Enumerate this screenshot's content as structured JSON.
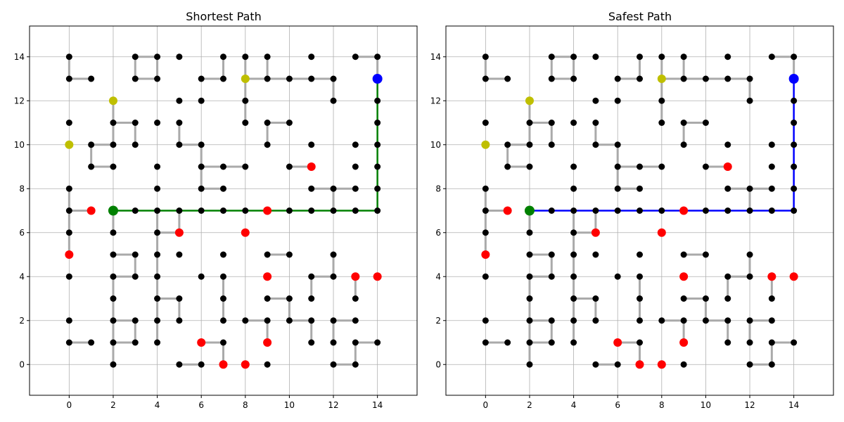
{
  "colors": {
    "node": "#000000",
    "danger": "#ff0000",
    "bonus": "#bfbf00",
    "start": "#008000",
    "goal": "#0000ff",
    "edge": "#aaaaaa",
    "grid": "#b0b0b0",
    "path_shortest": "#008000",
    "path_safest": "#0000ff"
  },
  "chart_data": [
    {
      "type": "scatter",
      "title": "Shortest Path",
      "xlabel": "",
      "ylabel": "",
      "xlim": [
        -1.8,
        15.8
      ],
      "ylim": [
        -1.4,
        15.4
      ],
      "xticks": [
        0,
        2,
        4,
        6,
        8,
        10,
        12,
        14
      ],
      "yticks": [
        0,
        2,
        4,
        6,
        8,
        10,
        12,
        14
      ],
      "grid": true,
      "path_color_key": "path_shortest",
      "path": [
        [
          2,
          7
        ],
        [
          3,
          7
        ],
        [
          4,
          7
        ],
        [
          5,
          7
        ],
        [
          6,
          7
        ],
        [
          7,
          7
        ],
        [
          8,
          7
        ],
        [
          9,
          7
        ],
        [
          10,
          7
        ],
        [
          11,
          7
        ],
        [
          12,
          7
        ],
        [
          13,
          7
        ],
        [
          14,
          7
        ],
        [
          14,
          8
        ],
        [
          14,
          9
        ],
        [
          14,
          10
        ],
        [
          14,
          11
        ],
        [
          14,
          12
        ],
        [
          14,
          13
        ]
      ]
    },
    {
      "type": "scatter",
      "title": "Safest Path",
      "xlabel": "",
      "ylabel": "",
      "xlim": [
        -1.8,
        15.8
      ],
      "ylim": [
        -1.4,
        15.4
      ],
      "xticks": [
        0,
        2,
        4,
        6,
        8,
        10,
        12,
        14
      ],
      "yticks": [
        0,
        2,
        4,
        6,
        8,
        10,
        12,
        14
      ],
      "grid": true,
      "path_color_key": "path_safest",
      "path": [
        [
          2,
          7
        ],
        [
          3,
          7
        ],
        [
          4,
          7
        ],
        [
          5,
          7
        ],
        [
          6,
          7
        ],
        [
          7,
          7
        ],
        [
          8,
          7
        ],
        [
          9,
          7
        ],
        [
          10,
          7
        ],
        [
          11,
          7
        ],
        [
          12,
          7
        ],
        [
          13,
          7
        ],
        [
          14,
          7
        ],
        [
          14,
          8
        ],
        [
          14,
          9
        ],
        [
          14,
          10
        ],
        [
          14,
          11
        ],
        [
          14,
          12
        ],
        [
          14,
          13
        ]
      ]
    }
  ],
  "graph": {
    "start": [
      2,
      7
    ],
    "goal": [
      14,
      13
    ],
    "bonus_nodes": [
      [
        0,
        10
      ],
      [
        2,
        12
      ],
      [
        8,
        13
      ]
    ],
    "danger_nodes": [
      [
        1,
        7
      ],
      [
        0,
        5
      ],
      [
        5,
        6
      ],
      [
        8,
        6
      ],
      [
        9,
        7
      ],
      [
        11,
        9
      ],
      [
        9,
        4
      ],
      [
        13,
        4
      ],
      [
        14,
        4
      ],
      [
        6,
        1
      ],
      [
        9,
        1
      ],
      [
        7,
        0
      ],
      [
        8,
        0
      ]
    ],
    "nodes": [
      [
        0,
        14
      ],
      [
        3,
        14
      ],
      [
        4,
        14
      ],
      [
        5,
        14
      ],
      [
        7,
        14
      ],
      [
        8,
        14
      ],
      [
        9,
        14
      ],
      [
        11,
        14
      ],
      [
        13,
        14
      ],
      [
        14,
        14
      ],
      [
        0,
        13
      ],
      [
        1,
        13
      ],
      [
        3,
        13
      ],
      [
        4,
        13
      ],
      [
        6,
        13
      ],
      [
        7,
        13
      ],
      [
        9,
        13
      ],
      [
        10,
        13
      ],
      [
        11,
        13
      ],
      [
        12,
        13
      ],
      [
        5,
        12
      ],
      [
        6,
        12
      ],
      [
        8,
        12
      ],
      [
        12,
        12
      ],
      [
        14,
        12
      ],
      [
        0,
        11
      ],
      [
        2,
        11
      ],
      [
        3,
        11
      ],
      [
        4,
        11
      ],
      [
        5,
        11
      ],
      [
        8,
        11
      ],
      [
        9,
        11
      ],
      [
        10,
        11
      ],
      [
        14,
        11
      ],
      [
        1,
        10
      ],
      [
        2,
        10
      ],
      [
        3,
        10
      ],
      [
        5,
        10
      ],
      [
        6,
        10
      ],
      [
        9,
        10
      ],
      [
        11,
        10
      ],
      [
        13,
        10
      ],
      [
        14,
        10
      ],
      [
        1,
        9
      ],
      [
        2,
        9
      ],
      [
        4,
        9
      ],
      [
        6,
        9
      ],
      [
        7,
        9
      ],
      [
        8,
        9
      ],
      [
        10,
        9
      ],
      [
        13,
        9
      ],
      [
        14,
        9
      ],
      [
        0,
        8
      ],
      [
        4,
        8
      ],
      [
        6,
        8
      ],
      [
        7,
        8
      ],
      [
        11,
        8
      ],
      [
        12,
        8
      ],
      [
        13,
        8
      ],
      [
        14,
        8
      ],
      [
        0,
        7
      ],
      [
        3,
        7
      ],
      [
        4,
        7
      ],
      [
        5,
        7
      ],
      [
        6,
        7
      ],
      [
        7,
        7
      ],
      [
        8,
        7
      ],
      [
        10,
        7
      ],
      [
        11,
        7
      ],
      [
        12,
        7
      ],
      [
        13,
        7
      ],
      [
        14,
        7
      ],
      [
        0,
        6
      ],
      [
        2,
        6
      ],
      [
        4,
        6
      ],
      [
        2,
        5
      ],
      [
        3,
        5
      ],
      [
        4,
        5
      ],
      [
        5,
        5
      ],
      [
        7,
        5
      ],
      [
        9,
        5
      ],
      [
        10,
        5
      ],
      [
        12,
        5
      ],
      [
        0,
        4
      ],
      [
        2,
        4
      ],
      [
        3,
        4
      ],
      [
        4,
        4
      ],
      [
        6,
        4
      ],
      [
        7,
        4
      ],
      [
        11,
        4
      ],
      [
        12,
        4
      ],
      [
        2,
        3
      ],
      [
        4,
        3
      ],
      [
        5,
        3
      ],
      [
        7,
        3
      ],
      [
        9,
        3
      ],
      [
        10,
        3
      ],
      [
        11,
        3
      ],
      [
        13,
        3
      ],
      [
        0,
        2
      ],
      [
        2,
        2
      ],
      [
        3,
        2
      ],
      [
        4,
        2
      ],
      [
        5,
        2
      ],
      [
        7,
        2
      ],
      [
        8,
        2
      ],
      [
        9,
        2
      ],
      [
        10,
        2
      ],
      [
        11,
        2
      ],
      [
        12,
        2
      ],
      [
        13,
        2
      ],
      [
        0,
        1
      ],
      [
        1,
        1
      ],
      [
        2,
        1
      ],
      [
        3,
        1
      ],
      [
        4,
        1
      ],
      [
        7,
        1
      ],
      [
        11,
        1
      ],
      [
        12,
        1
      ],
      [
        13,
        1
      ],
      [
        14,
        1
      ],
      [
        2,
        0
      ],
      [
        5,
        0
      ],
      [
        6,
        0
      ],
      [
        9,
        0
      ],
      [
        12,
        0
      ],
      [
        13,
        0
      ]
    ],
    "edges": [
      [
        [
          0,
          14
        ],
        [
          0,
          13
        ]
      ],
      [
        [
          0,
          13
        ],
        [
          1,
          13
        ]
      ],
      [
        [
          3,
          14
        ],
        [
          4,
          14
        ]
      ],
      [
        [
          3,
          14
        ],
        [
          3,
          13
        ]
      ],
      [
        [
          3,
          13
        ],
        [
          4,
          13
        ]
      ],
      [
        [
          4,
          14
        ],
        [
          4,
          13
        ]
      ],
      [
        [
          7,
          14
        ],
        [
          7,
          13
        ]
      ],
      [
        [
          6,
          13
        ],
        [
          7,
          13
        ]
      ],
      [
        [
          8,
          14
        ],
        [
          8,
          13
        ]
      ],
      [
        [
          8,
          13
        ],
        [
          9,
          13
        ]
      ],
      [
        [
          9,
          14
        ],
        [
          9,
          13
        ]
      ],
      [
        [
          9,
          13
        ],
        [
          10,
          13
        ]
      ],
      [
        [
          10,
          13
        ],
        [
          11,
          13
        ]
      ],
      [
        [
          11,
          13
        ],
        [
          12,
          13
        ]
      ],
      [
        [
          12,
          13
        ],
        [
          12,
          12
        ]
      ],
      [
        [
          13,
          14
        ],
        [
          14,
          14
        ]
      ],
      [
        [
          14,
          14
        ],
        [
          14,
          13
        ]
      ],
      [
        [
          8,
          13
        ],
        [
          8,
          12
        ]
      ],
      [
        [
          8,
          12
        ],
        [
          8,
          11
        ]
      ],
      [
        [
          2,
          12
        ],
        [
          2,
          11
        ]
      ],
      [
        [
          2,
          11
        ],
        [
          3,
          11
        ]
      ],
      [
        [
          3,
          11
        ],
        [
          3,
          10
        ]
      ],
      [
        [
          2,
          11
        ],
        [
          2,
          10
        ]
      ],
      [
        [
          1,
          10
        ],
        [
          2,
          10
        ]
      ],
      [
        [
          1,
          10
        ],
        [
          1,
          9
        ]
      ],
      [
        [
          1,
          9
        ],
        [
          2,
          9
        ]
      ],
      [
        [
          5,
          11
        ],
        [
          5,
          10
        ]
      ],
      [
        [
          5,
          10
        ],
        [
          6,
          10
        ]
      ],
      [
        [
          6,
          10
        ],
        [
          6,
          9
        ]
      ],
      [
        [
          6,
          9
        ],
        [
          7,
          9
        ]
      ],
      [
        [
          7,
          9
        ],
        [
          8,
          9
        ]
      ],
      [
        [
          6,
          9
        ],
        [
          6,
          8
        ]
      ],
      [
        [
          6,
          8
        ],
        [
          7,
          8
        ]
      ],
      [
        [
          9,
          11
        ],
        [
          10,
          11
        ]
      ],
      [
        [
          9,
          11
        ],
        [
          9,
          10
        ]
      ],
      [
        [
          10,
          9
        ],
        [
          11,
          9
        ]
      ],
      [
        [
          11,
          8
        ],
        [
          12,
          8
        ]
      ],
      [
        [
          12,
          8
        ],
        [
          13,
          8
        ]
      ],
      [
        [
          12,
          8
        ],
        [
          12,
          7
        ]
      ],
      [
        [
          0,
          8
        ],
        [
          0,
          7
        ]
      ],
      [
        [
          0,
          7
        ],
        [
          1,
          7
        ]
      ],
      [
        [
          2,
          7
        ],
        [
          2,
          6
        ]
      ],
      [
        [
          4,
          7
        ],
        [
          4,
          6
        ]
      ],
      [
        [
          4,
          6
        ],
        [
          5,
          6
        ]
      ],
      [
        [
          5,
          7
        ],
        [
          5,
          6
        ]
      ],
      [
        [
          0,
          7
        ],
        [
          0,
          6
        ]
      ],
      [
        [
          0,
          6
        ],
        [
          0,
          5
        ]
      ],
      [
        [
          2,
          5
        ],
        [
          3,
          5
        ]
      ],
      [
        [
          3,
          5
        ],
        [
          3,
          4
        ]
      ],
      [
        [
          2,
          4
        ],
        [
          3,
          4
        ]
      ],
      [
        [
          4,
          6
        ],
        [
          4,
          5
        ]
      ],
      [
        [
          4,
          5
        ],
        [
          4,
          4
        ]
      ],
      [
        [
          9,
          5
        ],
        [
          10,
          5
        ]
      ],
      [
        [
          12,
          5
        ],
        [
          12,
          4
        ]
      ],
      [
        [
          11,
          4
        ],
        [
          12,
          4
        ]
      ],
      [
        [
          11,
          4
        ],
        [
          11,
          3
        ]
      ],
      [
        [
          13,
          4
        ],
        [
          13,
          3
        ]
      ],
      [
        [
          4,
          4
        ],
        [
          4,
          3
        ]
      ],
      [
        [
          4,
          3
        ],
        [
          5,
          3
        ]
      ],
      [
        [
          5,
          3
        ],
        [
          5,
          2
        ]
      ],
      [
        [
          4,
          3
        ],
        [
          4,
          2
        ]
      ],
      [
        [
          7,
          4
        ],
        [
          7,
          3
        ]
      ],
      [
        [
          7,
          3
        ],
        [
          7,
          2
        ]
      ],
      [
        [
          2,
          4
        ],
        [
          2,
          3
        ]
      ],
      [
        [
          2,
          3
        ],
        [
          2,
          2
        ]
      ],
      [
        [
          2,
          2
        ],
        [
          3,
          2
        ]
      ],
      [
        [
          3,
          2
        ],
        [
          3,
          1
        ]
      ],
      [
        [
          2,
          2
        ],
        [
          2,
          1
        ]
      ],
      [
        [
          2,
          1
        ],
        [
          3,
          1
        ]
      ],
      [
        [
          2,
          1
        ],
        [
          2,
          0
        ]
      ],
      [
        [
          4,
          2
        ],
        [
          4,
          1
        ]
      ],
      [
        [
          0,
          1
        ],
        [
          1,
          1
        ]
      ],
      [
        [
          6,
          1
        ],
        [
          7,
          1
        ]
      ],
      [
        [
          7,
          1
        ],
        [
          7,
          0
        ]
      ],
      [
        [
          9,
          3
        ],
        [
          10,
          3
        ]
      ],
      [
        [
          10,
          3
        ],
        [
          10,
          2
        ]
      ],
      [
        [
          10,
          2
        ],
        [
          11,
          2
        ]
      ],
      [
        [
          11,
          2
        ],
        [
          11,
          1
        ]
      ],
      [
        [
          12,
          2
        ],
        [
          13,
          2
        ]
      ],
      [
        [
          12,
          2
        ],
        [
          12,
          1
        ]
      ],
      [
        [
          13,
          1
        ],
        [
          14,
          1
        ]
      ],
      [
        [
          13,
          1
        ],
        [
          13,
          0
        ]
      ],
      [
        [
          12,
          0
        ],
        [
          13,
          0
        ]
      ],
      [
        [
          5,
          0
        ],
        [
          6,
          0
        ]
      ],
      [
        [
          9,
          2
        ],
        [
          9,
          1
        ]
      ],
      [
        [
          8,
          2
        ],
        [
          9,
          2
        ]
      ]
    ]
  }
}
